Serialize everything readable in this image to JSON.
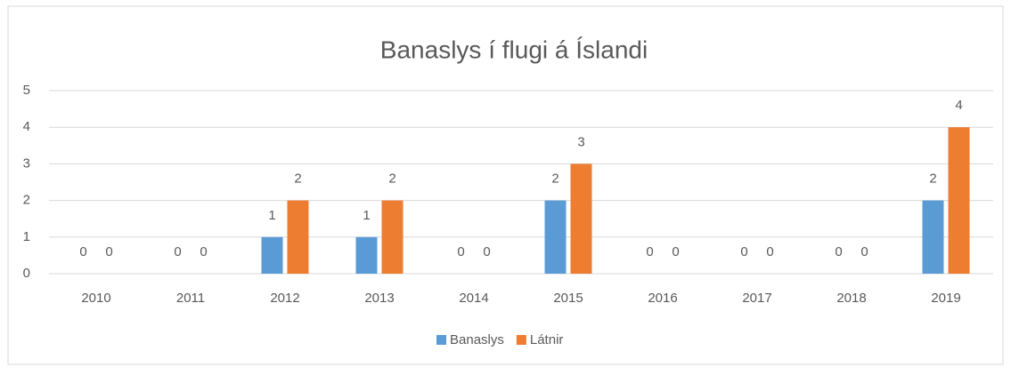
{
  "chart_data": {
    "type": "bar",
    "title": "Banaslys í flugi á Íslandi",
    "categories": [
      "2010",
      "2011",
      "2012",
      "2013",
      "2014",
      "2015",
      "2016",
      "2017",
      "2018",
      "2019"
    ],
    "series": [
      {
        "name": "Banaslys",
        "color": "#5b9bd5",
        "values": [
          0,
          0,
          1,
          1,
          0,
          2,
          0,
          0,
          0,
          2
        ]
      },
      {
        "name": "Látnir",
        "color": "#ed7d31",
        "values": [
          0,
          0,
          2,
          2,
          0,
          3,
          0,
          0,
          0,
          4
        ]
      }
    ],
    "ylim": [
      0,
      5
    ],
    "yticks": [
      0,
      1,
      2,
      3,
      4,
      5
    ],
    "grid": true,
    "legend": "bottom"
  }
}
